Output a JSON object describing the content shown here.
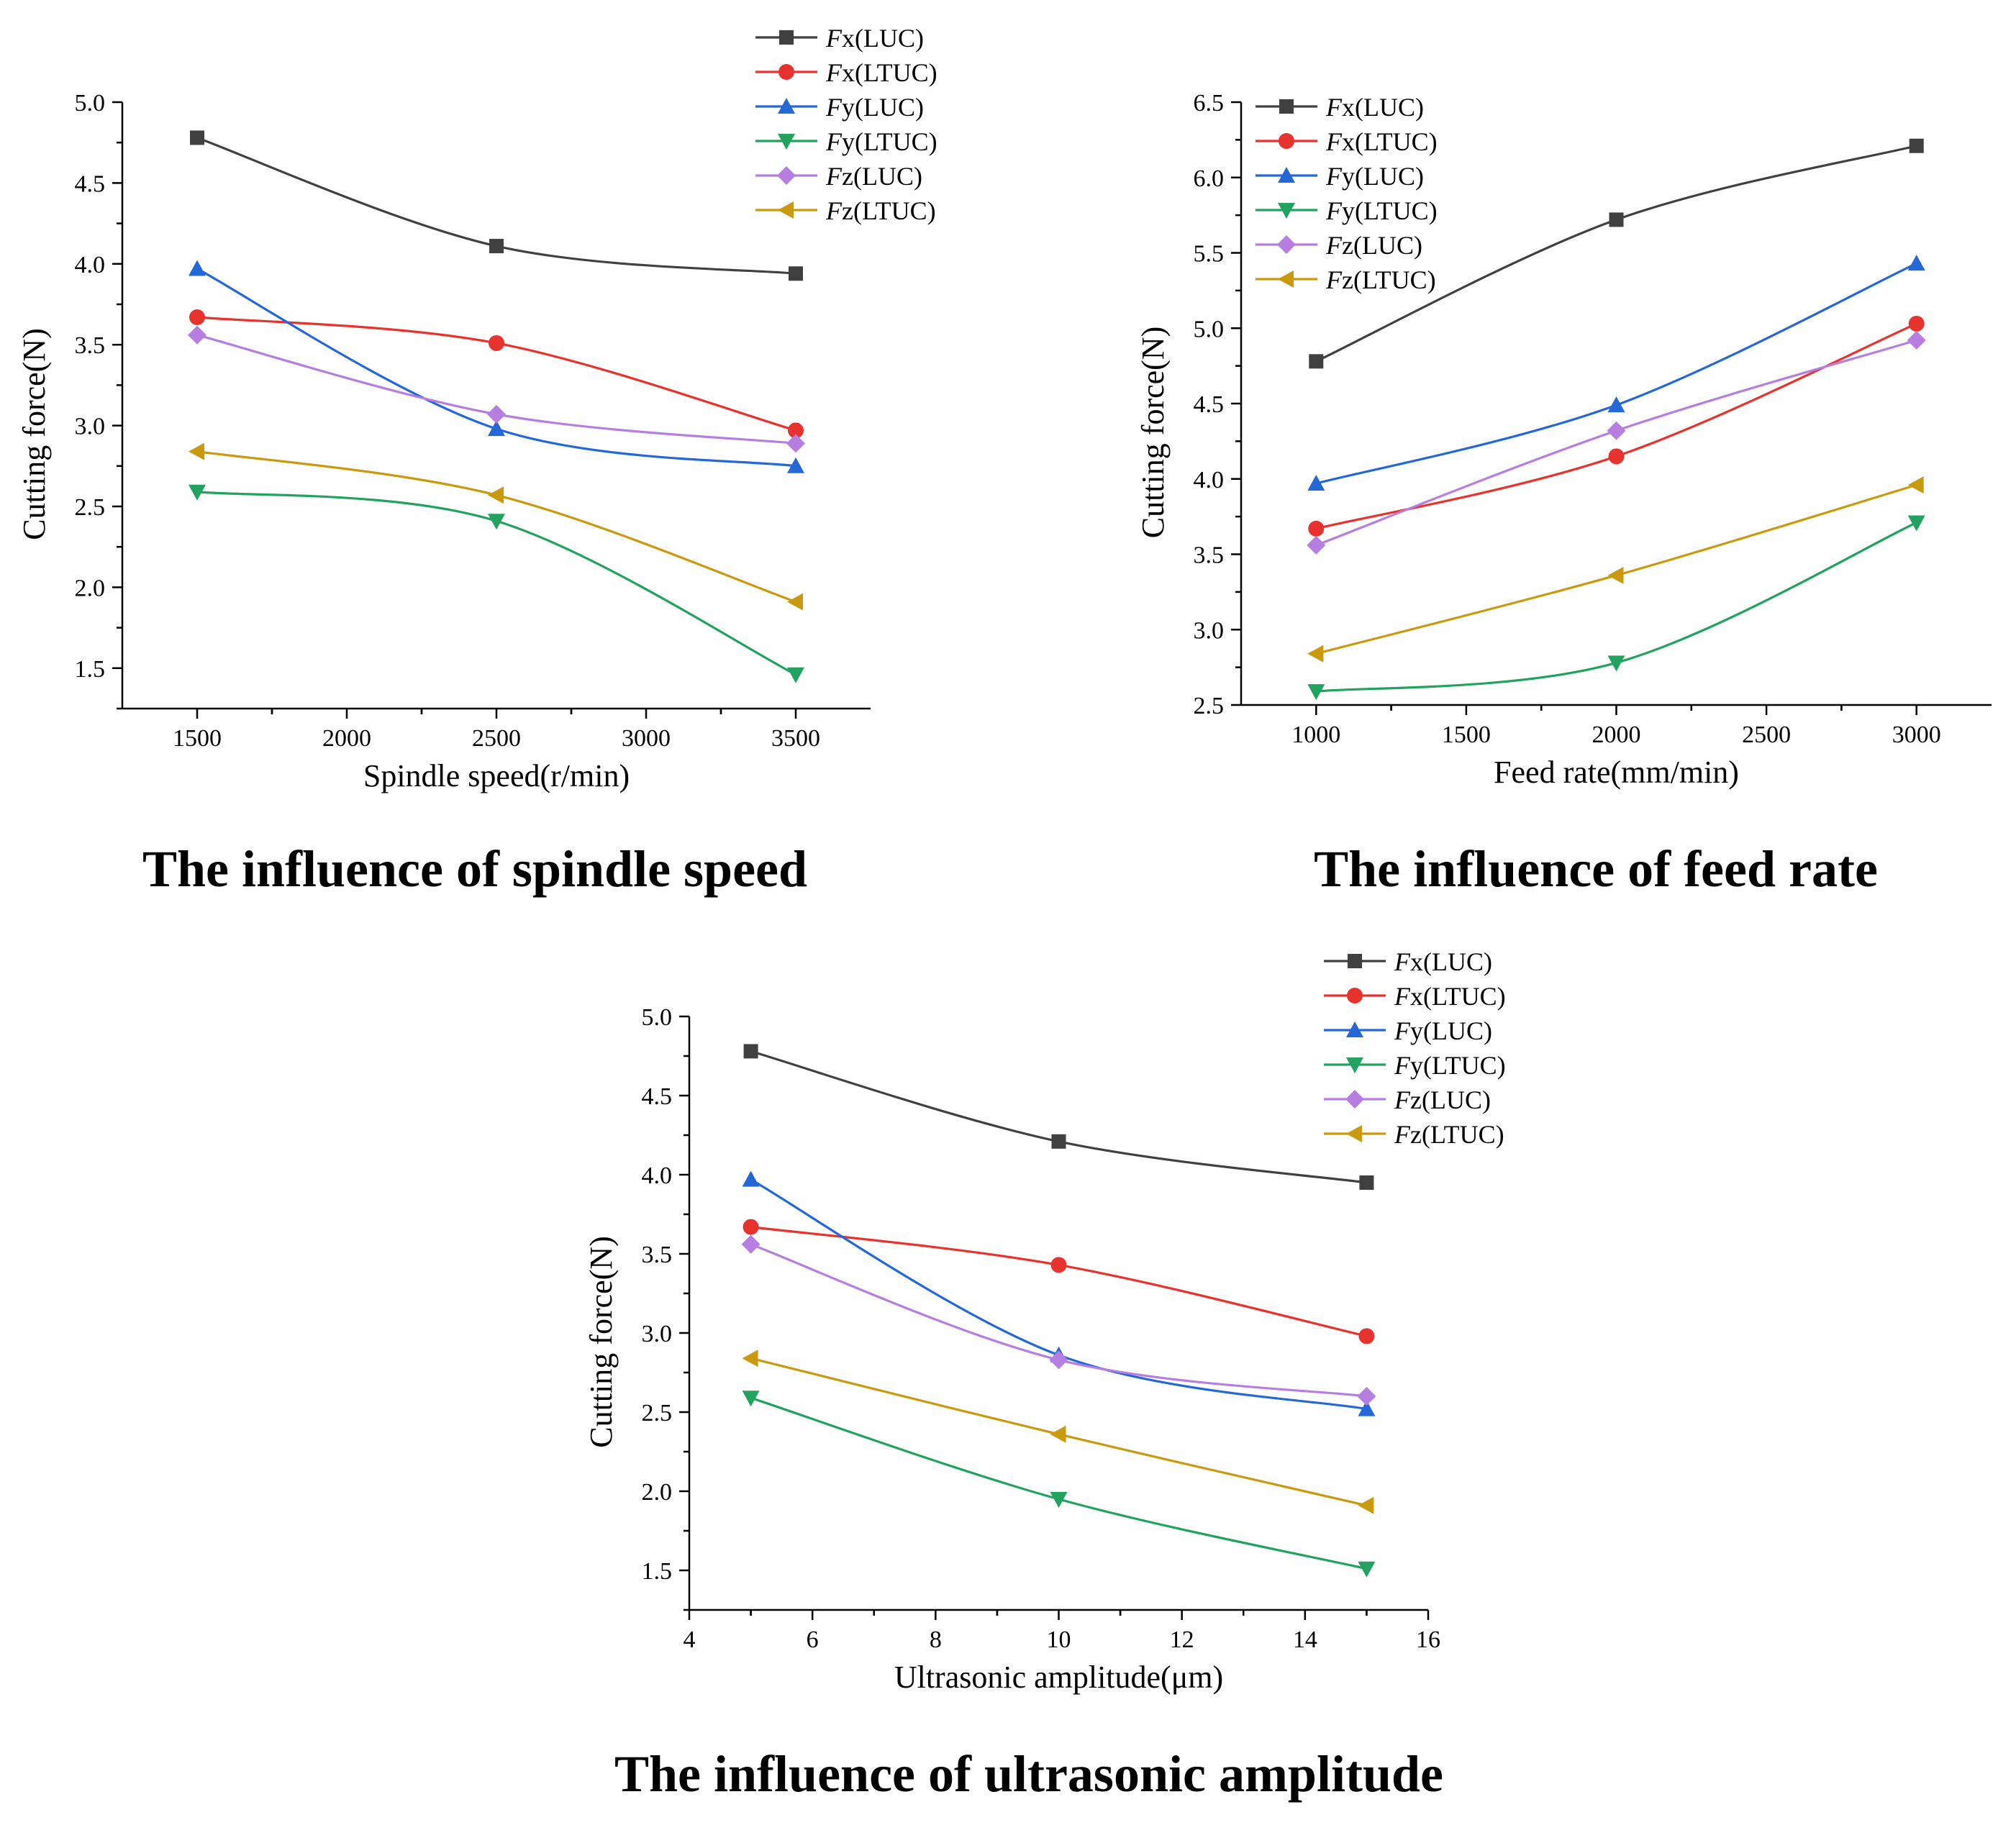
{
  "chart_data": [
    {
      "type": "line",
      "caption": "The influence of spindle speed",
      "xlabel": "Spindle speed(r/min)",
      "ylabel": "Cutting force(N)",
      "xlim": [
        1250,
        3750
      ],
      "ylim": [
        1.25,
        5.0
      ],
      "xticks": [
        "1500",
        "2000",
        "2500",
        "3000",
        "3500"
      ],
      "xtick_values": [
        1500,
        2000,
        2500,
        3000,
        3500
      ],
      "yticks": [
        "1.5",
        "2.0",
        "2.5",
        "3.0",
        "3.5",
        "4.0",
        "4.5",
        "5.0"
      ],
      "ytick_values": [
        1.5,
        2.0,
        2.5,
        3.0,
        3.5,
        4.0,
        4.5,
        5.0
      ],
      "legend_position": "top-right",
      "x": [
        1500,
        2500,
        3500
      ],
      "series": [
        {
          "name": "Fx(LUC)",
          "prefix": "F",
          "suffix": "x(LUC)",
          "marker": "square",
          "color": "#404040",
          "values": [
            4.78,
            4.11,
            3.94
          ]
        },
        {
          "name": "Fx(LTUC)",
          "prefix": "F",
          "suffix": "x(LTUC)",
          "marker": "circle",
          "color": "#e8322e",
          "values": [
            3.67,
            3.51,
            2.97
          ]
        },
        {
          "name": "Fy(LUC)",
          "prefix": "F",
          "suffix": "y(LUC)",
          "marker": "triangle-up",
          "color": "#2468d8",
          "values": [
            3.97,
            2.98,
            2.75
          ]
        },
        {
          "name": "Fy(LTUC)",
          "prefix": "F",
          "suffix": "y(LTUC)",
          "marker": "triangle-down",
          "color": "#21a35f",
          "values": [
            2.59,
            2.41,
            1.46
          ]
        },
        {
          "name": "Fz(LUC)",
          "prefix": "F",
          "suffix": "z(LUC)",
          "marker": "diamond",
          "color": "#b57ee0",
          "values": [
            3.56,
            3.07,
            2.89
          ]
        },
        {
          "name": "Fz(LTUC)",
          "prefix": "F",
          "suffix": "z(LTUC)",
          "marker": "triangle-left",
          "color": "#c99a0e",
          "values": [
            2.84,
            2.57,
            1.91
          ]
        }
      ]
    },
    {
      "type": "line",
      "caption": "The influence of feed rate",
      "xlabel": "Feed rate(mm/min)",
      "ylabel": "Cutting force(N)",
      "xlim": [
        750,
        3250
      ],
      "ylim": [
        2.5,
        6.5
      ],
      "xticks": [
        "1000",
        "1500",
        "2000",
        "2500",
        "3000"
      ],
      "xtick_values": [
        1000,
        1500,
        2000,
        2500,
        3000
      ],
      "yticks": [
        "2.5",
        "3.0",
        "3.5",
        "4.0",
        "4.5",
        "5.0",
        "5.5",
        "6.0",
        "6.5"
      ],
      "ytick_values": [
        2.5,
        3.0,
        3.5,
        4.0,
        4.5,
        5.0,
        5.5,
        6.0,
        6.5
      ],
      "legend_position": "top-left",
      "x": [
        1000,
        2000,
        3000
      ],
      "series": [
        {
          "name": "Fx(LUC)",
          "prefix": "F",
          "suffix": "x(LUC)",
          "marker": "square",
          "color": "#404040",
          "values": [
            4.78,
            5.72,
            6.21
          ]
        },
        {
          "name": "Fx(LTUC)",
          "prefix": "F",
          "suffix": "x(LTUC)",
          "marker": "circle",
          "color": "#e8322e",
          "values": [
            3.67,
            4.15,
            5.03
          ]
        },
        {
          "name": "Fy(LUC)",
          "prefix": "F",
          "suffix": "y(LUC)",
          "marker": "triangle-up",
          "color": "#2468d8",
          "values": [
            3.97,
            4.49,
            5.43
          ]
        },
        {
          "name": "Fy(LTUC)",
          "prefix": "F",
          "suffix": "y(LTUC)",
          "marker": "triangle-down",
          "color": "#21a35f",
          "values": [
            2.59,
            2.78,
            3.71
          ]
        },
        {
          "name": "Fz(LUC)",
          "prefix": "F",
          "suffix": "z(LUC)",
          "marker": "diamond",
          "color": "#b57ee0",
          "values": [
            3.56,
            4.32,
            4.92
          ]
        },
        {
          "name": "Fz(LTUC)",
          "prefix": "F",
          "suffix": "z(LTUC)",
          "marker": "triangle-left",
          "color": "#c99a0e",
          "values": [
            2.84,
            3.36,
            3.96
          ]
        }
      ]
    },
    {
      "type": "line",
      "caption": "The influence of ultrasonic amplitude",
      "xlabel": "Ultrasonic amplitude(μm)",
      "ylabel": "Cutting force(N)",
      "xlim": [
        4,
        16
      ],
      "ylim": [
        1.25,
        5.0
      ],
      "xticks": [
        "4",
        "6",
        "8",
        "10",
        "12",
        "14",
        "16"
      ],
      "xtick_values": [
        4,
        6,
        8,
        10,
        12,
        14,
        16
      ],
      "yticks": [
        "1.5",
        "2.0",
        "2.5",
        "3.0",
        "3.5",
        "4.0",
        "4.5",
        "5.0"
      ],
      "ytick_values": [
        1.5,
        2.0,
        2.5,
        3.0,
        3.5,
        4.0,
        4.5,
        5.0
      ],
      "legend_position": "top-right",
      "x": [
        5,
        10,
        15
      ],
      "series": [
        {
          "name": "Fx(LUC)",
          "prefix": "F",
          "suffix": "x(LUC)",
          "marker": "square",
          "color": "#404040",
          "values": [
            4.78,
            4.21,
            3.95
          ]
        },
        {
          "name": "Fx(LTUC)",
          "prefix": "F",
          "suffix": "x(LTUC)",
          "marker": "circle",
          "color": "#e8322e",
          "values": [
            3.67,
            3.43,
            2.98
          ]
        },
        {
          "name": "Fy(LUC)",
          "prefix": "F",
          "suffix": "y(LUC)",
          "marker": "triangle-up",
          "color": "#2468d8",
          "values": [
            3.97,
            2.86,
            2.52
          ]
        },
        {
          "name": "Fy(LTUC)",
          "prefix": "F",
          "suffix": "y(LTUC)",
          "marker": "triangle-down",
          "color": "#21a35f",
          "values": [
            2.59,
            1.95,
            1.51
          ]
        },
        {
          "name": "Fz(LUC)",
          "prefix": "F",
          "suffix": "z(LUC)",
          "marker": "diamond",
          "color": "#b57ee0",
          "values": [
            3.56,
            2.83,
            2.6
          ]
        },
        {
          "name": "Fz(LTUC)",
          "prefix": "F",
          "suffix": "z(LTUC)",
          "marker": "triangle-left",
          "color": "#c99a0e",
          "values": [
            2.84,
            2.36,
            1.91
          ]
        }
      ]
    }
  ]
}
